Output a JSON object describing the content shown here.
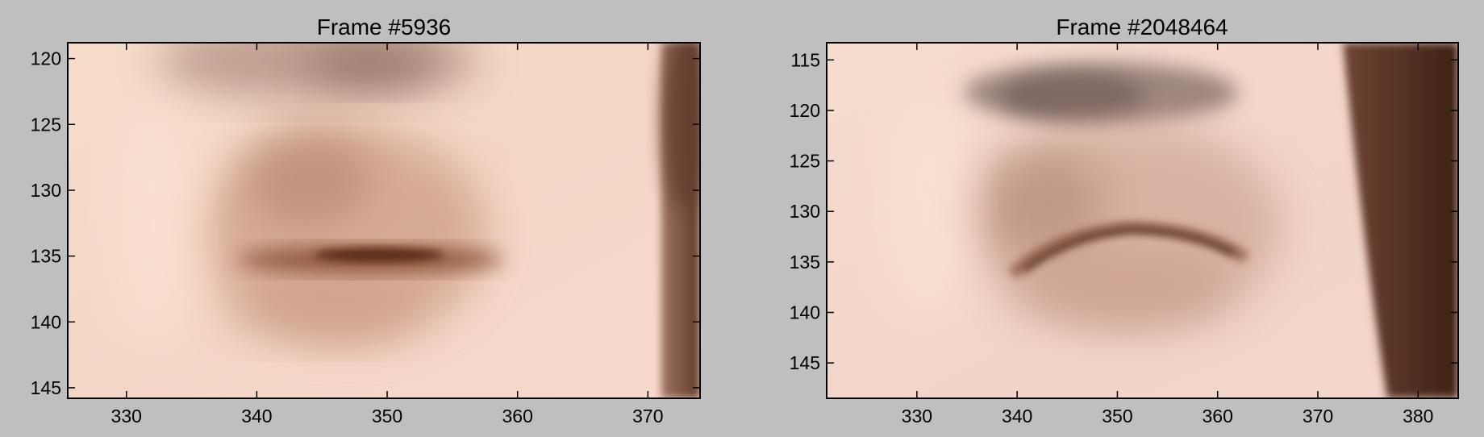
{
  "chart_data": [
    {
      "type": "image",
      "title": "Frame #5936",
      "xlabel": "",
      "ylabel": "",
      "xlim": [
        325.5,
        374
      ],
      "ylim": [
        145.8,
        118.8
      ],
      "y_inverted": true,
      "xticks": [
        330,
        340,
        350,
        360,
        370
      ],
      "yticks": [
        120,
        125,
        130,
        135,
        140,
        145
      ],
      "grid": false,
      "image_content": "blurred close-up of a closed eye with eyebrow above, skin tones",
      "colors": {
        "skin": "#f3d2c1",
        "shadow": "#b98a72",
        "lash": "#5a2c18",
        "hair": "#6b4535"
      }
    },
    {
      "type": "image",
      "title": "Frame #2048464",
      "xlabel": "",
      "ylabel": "",
      "xlim": [
        321,
        384
      ],
      "ylim": [
        148.5,
        113.3
      ],
      "y_inverted": true,
      "xticks": [
        330,
        340,
        350,
        360,
        370,
        380
      ],
      "yticks": [
        115,
        120,
        125,
        130,
        135,
        140,
        145
      ],
      "grid": false,
      "image_content": "sharper close-up of a closed eye with eyebrow above and dark hair at right edge",
      "colors": {
        "skin": "#f0d3c6",
        "shadow": "#b08674",
        "lash": "#4a2618",
        "hair": "#5a3426"
      }
    }
  ]
}
